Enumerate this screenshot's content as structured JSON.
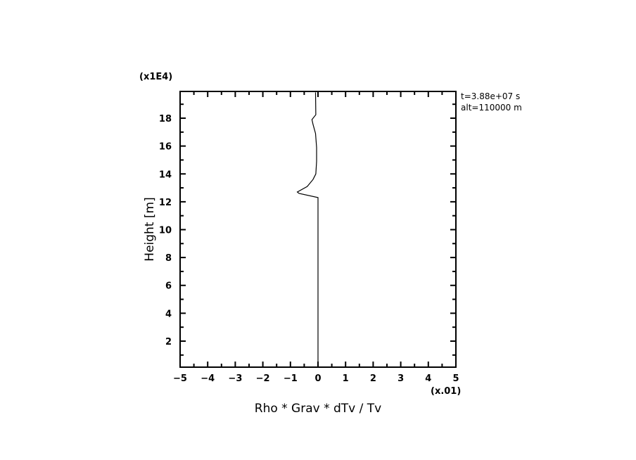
{
  "chart_data": {
    "type": "line",
    "title": "",
    "xlabel": "Rho * Grav * dTv / Tv",
    "ylabel": "Height [m]",
    "x_multiplier": "(x.01)",
    "y_multiplier": "(x1E4)",
    "xlim": [
      -5,
      5
    ],
    "ylim": [
      0.1,
      20
    ],
    "xticks": [
      -5,
      -4,
      -3,
      -2,
      -1,
      0,
      1,
      2,
      3,
      4,
      5
    ],
    "yticks": [
      2,
      4,
      6,
      8,
      10,
      12,
      14,
      16,
      18
    ],
    "grid": false,
    "annotations": [
      "t=3.88e+07 s",
      "alt=110000 m"
    ],
    "series": [
      {
        "color": "#000000",
        "points": [
          [
            -0.09,
            19.85
          ],
          [
            -0.08,
            18.25
          ],
          [
            -0.22,
            17.9
          ],
          [
            -0.18,
            17.56
          ],
          [
            -0.09,
            16.9
          ],
          [
            -0.05,
            15.9
          ],
          [
            -0.05,
            14.9
          ],
          [
            -0.08,
            14.0
          ],
          [
            -0.18,
            13.6
          ],
          [
            -0.39,
            13.1
          ],
          [
            -0.75,
            12.7
          ],
          [
            -0.69,
            12.6
          ],
          [
            0.0,
            12.3
          ],
          [
            0.0,
            0.2
          ]
        ]
      }
    ]
  }
}
